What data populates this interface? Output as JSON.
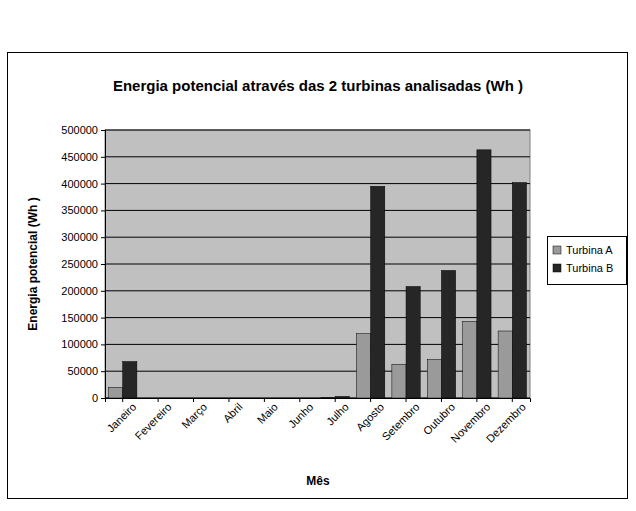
{
  "chart_data": {
    "type": "bar",
    "title": "Energia potencial através das 2 turbinas analisadas (Wh )",
    "x_label": "Mês",
    "y_label": "Energia potencial (Wh )",
    "categories": [
      "Janeiro",
      "Fevereiro",
      "Março",
      "Abril",
      "Maio",
      "Junho",
      "Julho",
      "Agosto",
      "Setembro",
      "Outubro",
      "Novembro",
      "Dezembro"
    ],
    "series": [
      {
        "name": "Turbina A",
        "color": "#9a9a9a",
        "values": [
          20000,
          0,
          0,
          0,
          0,
          0,
          1000,
          120000,
          63000,
          72000,
          143000,
          125000
        ]
      },
      {
        "name": "Turbina B",
        "color": "#262626",
        "values": [
          68000,
          0,
          0,
          0,
          0,
          0,
          3000,
          395000,
          208000,
          238000,
          463000,
          402000
        ]
      }
    ],
    "ylim": [
      0,
      500000
    ],
    "yticks": [
      0,
      50000,
      100000,
      150000,
      200000,
      250000,
      300000,
      350000,
      400000,
      450000,
      500000
    ],
    "grid": true,
    "legend": "right"
  }
}
